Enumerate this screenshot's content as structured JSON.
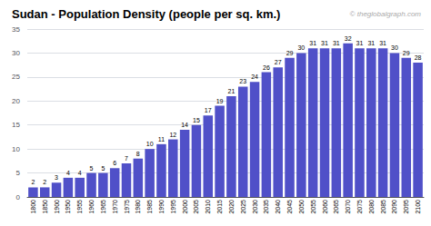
{
  "chart_data": {
    "type": "bar",
    "title": "Sudan - Population Density (people per sq. km.)",
    "categories": [
      "1800",
      "1850",
      "1900",
      "1950",
      "1955",
      "1960",
      "1965",
      "1970",
      "1975",
      "1980",
      "1985",
      "1990",
      "1995",
      "2000",
      "2005",
      "2010",
      "2015",
      "2020",
      "2025",
      "2030",
      "2035",
      "2040",
      "2045",
      "2050",
      "2055",
      "2060",
      "2065",
      "2070",
      "2075",
      "2080",
      "2085",
      "2090",
      "2095",
      "2100"
    ],
    "values": [
      2,
      2,
      3,
      4,
      4,
      5,
      5,
      6,
      7,
      8,
      10,
      11,
      12,
      14,
      15,
      17,
      19,
      21,
      23,
      24,
      26,
      27,
      29,
      30,
      31,
      31,
      31,
      32,
      31,
      31,
      31,
      30,
      29,
      28
    ],
    "color": "#5050c8",
    "ylim": [
      0,
      35
    ],
    "yticks": [
      0,
      5,
      10,
      15,
      20,
      25,
      30,
      35
    ],
    "grid": true,
    "data_labels": true,
    "annotations": [
      "© theglobalgraph.com"
    ]
  }
}
